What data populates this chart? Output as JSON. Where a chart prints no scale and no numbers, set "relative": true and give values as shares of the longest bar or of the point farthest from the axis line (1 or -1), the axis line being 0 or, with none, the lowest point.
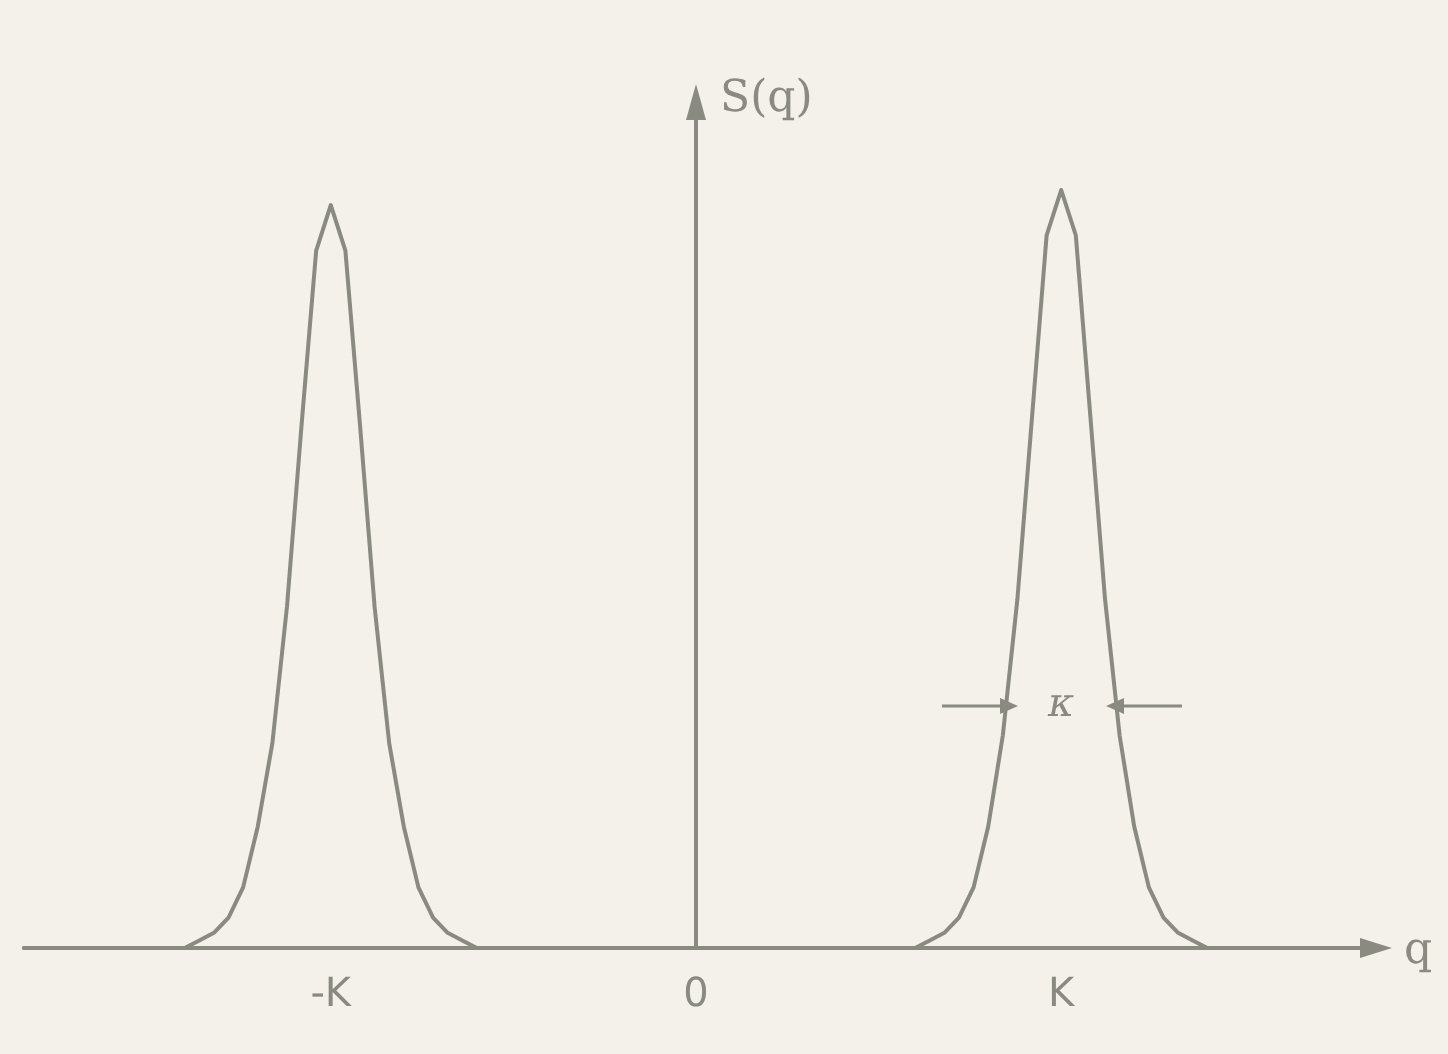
{
  "chart_data": {
    "type": "line",
    "relative": true,
    "xlabel": "q",
    "ylabel": "S(q)",
    "categories": [
      null,
      null,
      null,
      null,
      null,
      null,
      null,
      null,
      null,
      null,
      null,
      null,
      null,
      null,
      null,
      null,
      null,
      null,
      null,
      null,
      null,
      "-K",
      null,
      null,
      null,
      null,
      null,
      null,
      null,
      null,
      null,
      null,
      null,
      null,
      null,
      null,
      null,
      null,
      null,
      null,
      null,
      null,
      null,
      null,
      null,
      null,
      "0",
      null,
      null,
      null,
      null,
      null,
      null,
      null,
      null,
      null,
      null,
      null,
      null,
      null,
      null,
      null,
      null,
      null,
      null,
      null,
      null,
      null,
      null,
      null,
      null,
      "K",
      null,
      null,
      null,
      null,
      null,
      null,
      null,
      null,
      null,
      null,
      null,
      null,
      null,
      null,
      null,
      null,
      null,
      null,
      null,
      null,
      null
    ],
    "series": [
      {
        "color": "#8a8a80",
        "values": [
          0,
          0,
          0,
          0,
          0,
          0,
          0,
          0,
          0,
          0,
          0,
          0,
          0.01,
          0.02,
          0.04,
          0.08,
          0.16,
          0.27,
          0.45,
          0.69,
          0.92,
          0.98,
          0.92,
          0.69,
          0.45,
          0.27,
          0.16,
          0.08,
          0.04,
          0.02,
          0.01,
          0,
          0,
          0,
          0,
          0,
          0,
          0,
          0,
          0,
          0,
          0,
          0,
          0,
          0,
          0,
          0,
          0,
          0,
          0,
          0,
          0,
          0,
          0,
          0,
          0,
          0,
          0,
          0,
          0,
          0,
          0,
          0.01,
          0.02,
          0.04,
          0.08,
          0.16,
          0.28,
          0.46,
          0.7,
          0.94,
          1,
          0.94,
          0.7,
          0.46,
          0.28,
          0.16,
          0.08,
          0.04,
          0.02,
          0.01,
          0,
          0,
          0,
          0,
          0,
          0,
          0,
          0,
          0,
          0,
          0,
          0
        ]
      }
    ],
    "annotations": [
      "κ"
    ],
    "grid": false,
    "legend": false,
    "marker": "none",
    "line_style": "solid"
  }
}
